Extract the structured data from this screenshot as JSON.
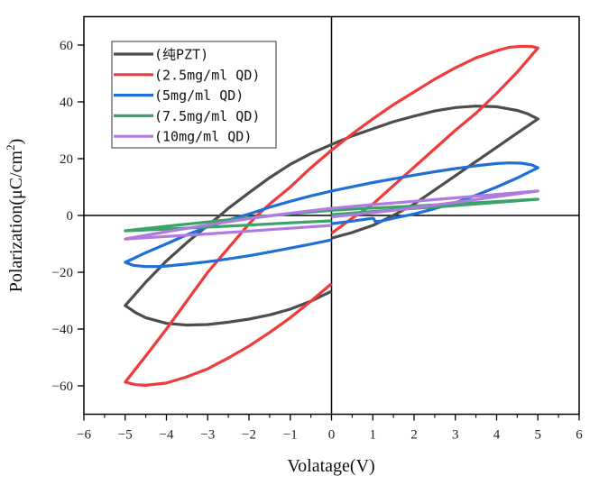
{
  "chart_data": {
    "type": "line",
    "title": "",
    "xlabel": "Volatage(V)",
    "ylabel": "Polarization(μC/cm²)",
    "ylabel_base": "Polarization(μC/cm",
    "ylabel_sup": "2",
    "ylabel_end": ")",
    "xlim": [
      -6,
      6
    ],
    "ylim": [
      -70,
      70
    ],
    "x_ticks": [
      -6,
      -5,
      -4,
      -3,
      -2,
      -1,
      0,
      1,
      2,
      3,
      4,
      5,
      6
    ],
    "x_tick_labels": [
      "−6",
      "−5",
      "−4",
      "−3",
      "−2",
      "−1",
      "0",
      "1",
      "2",
      "3",
      "4",
      "5",
      "6"
    ],
    "y_ticks": [
      -60,
      -40,
      -20,
      0,
      20,
      40,
      60
    ],
    "y_tick_labels": [
      "−60",
      "−40",
      "−20",
      "0",
      "20",
      "40",
      "60"
    ],
    "grid": false,
    "zero_lines": true,
    "legend_position": "top-left",
    "series": [
      {
        "name": "(纯PZT)",
        "color": "#4d4d4d",
        "points": [
          [
            0,
            -8
          ],
          [
            0.5,
            -6
          ],
          [
            1,
            -3.5
          ],
          [
            1.5,
            0
          ],
          [
            2,
            4
          ],
          [
            2.5,
            9
          ],
          [
            3,
            14
          ],
          [
            3.5,
            19
          ],
          [
            4,
            24
          ],
          [
            4.5,
            29
          ],
          [
            5,
            34
          ],
          [
            4.75,
            35.8
          ],
          [
            4.5,
            37
          ],
          [
            4,
            38.3
          ],
          [
            3.5,
            38.5
          ],
          [
            3,
            38
          ],
          [
            2.5,
            36.8
          ],
          [
            2,
            35
          ],
          [
            1.5,
            33
          ],
          [
            1,
            30.5
          ],
          [
            0.5,
            28
          ],
          [
            0,
            25
          ],
          [
            -0.5,
            21.8
          ],
          [
            -1,
            18
          ],
          [
            -1.5,
            13.3
          ],
          [
            -2,
            8
          ],
          [
            -2.5,
            2.5
          ],
          [
            -2.7,
            0
          ],
          [
            -3,
            -3.5
          ],
          [
            -3.5,
            -9.5
          ],
          [
            -4,
            -16
          ],
          [
            -4.5,
            -23.5
          ],
          [
            -5,
            -31.7
          ],
          [
            -4.75,
            -34.2
          ],
          [
            -4.5,
            -36
          ],
          [
            -4,
            -38
          ],
          [
            -3.5,
            -38.6
          ],
          [
            -3,
            -38.4
          ],
          [
            -2.5,
            -37.6
          ],
          [
            -2,
            -36.5
          ],
          [
            -1.5,
            -35
          ],
          [
            -1,
            -33
          ],
          [
            -0.5,
            -30.2
          ],
          [
            0,
            -26.7
          ]
        ]
      },
      {
        "name": "(2.5mg/ml QD)",
        "color": "#ee3b3b",
        "points": [
          [
            0,
            -6.3
          ],
          [
            0.5,
            -1
          ],
          [
            1,
            4
          ],
          [
            1.5,
            10.5
          ],
          [
            2,
            17
          ],
          [
            2.5,
            23.5
          ],
          [
            3,
            30
          ],
          [
            3.5,
            36
          ],
          [
            4,
            43
          ],
          [
            4.5,
            50.5
          ],
          [
            5,
            59
          ],
          [
            4.85,
            59.5
          ],
          [
            4.6,
            59.6
          ],
          [
            4.3,
            59.2
          ],
          [
            4,
            58
          ],
          [
            3.5,
            55.5
          ],
          [
            3,
            52
          ],
          [
            2.5,
            48
          ],
          [
            2,
            43.5
          ],
          [
            1.5,
            39
          ],
          [
            1,
            34
          ],
          [
            0.5,
            28.7
          ],
          [
            0,
            23
          ],
          [
            -0.5,
            16.8
          ],
          [
            -1,
            10
          ],
          [
            -1.5,
            4
          ],
          [
            -1.8,
            0
          ],
          [
            -2,
            -3
          ],
          [
            -2.5,
            -11.5
          ],
          [
            -3,
            -20
          ],
          [
            -3.5,
            -30
          ],
          [
            -4,
            -40
          ],
          [
            -4.5,
            -49.5
          ],
          [
            -5,
            -58.7
          ],
          [
            -4.75,
            -59.6
          ],
          [
            -4.5,
            -59.8
          ],
          [
            -4,
            -59
          ],
          [
            -3.5,
            -56.8
          ],
          [
            -3,
            -54
          ],
          [
            -2.5,
            -50.2
          ],
          [
            -2,
            -46
          ],
          [
            -1.5,
            -41.2
          ],
          [
            -1,
            -36
          ],
          [
            -0.5,
            -30.2
          ],
          [
            0,
            -24
          ]
        ]
      },
      {
        "name": "(5mg/ml QD)",
        "color": "#1f6fd6",
        "points": [
          [
            0,
            -2.9
          ],
          [
            0.5,
            -2
          ],
          [
            1,
            -1
          ],
          [
            1.02,
            -1.2
          ],
          [
            1.06,
            -2.1
          ],
          [
            1.2,
            -2
          ],
          [
            1.5,
            -1
          ],
          [
            2,
            0.5
          ],
          [
            2.5,
            2.4
          ],
          [
            3,
            4.5
          ],
          [
            3.5,
            7.1
          ],
          [
            4,
            10
          ],
          [
            4.5,
            13.2
          ],
          [
            5,
            16.8
          ],
          [
            4.85,
            17.8
          ],
          [
            4.6,
            18.4
          ],
          [
            4.3,
            18.5
          ],
          [
            4,
            18.3
          ],
          [
            3.5,
            17.5
          ],
          [
            3,
            16.5
          ],
          [
            2.5,
            15.4
          ],
          [
            2,
            14.2
          ],
          [
            1.5,
            12.9
          ],
          [
            1,
            11.6
          ],
          [
            0.5,
            10.1
          ],
          [
            0,
            8.6
          ],
          [
            -0.5,
            6.9
          ],
          [
            -1,
            5
          ],
          [
            -1.5,
            2.9
          ],
          [
            -2,
            0.5
          ],
          [
            -2.5,
            -1.6
          ],
          [
            -3,
            -4
          ],
          [
            -3.5,
            -6.8
          ],
          [
            -4,
            -10
          ],
          [
            -4.5,
            -13.1
          ],
          [
            -5,
            -16.5
          ],
          [
            -4.8,
            -17.6
          ],
          [
            -4.5,
            -18
          ],
          [
            -4.2,
            -18
          ],
          [
            -4,
            -17.8
          ],
          [
            -3.5,
            -17.1
          ],
          [
            -3,
            -16.3
          ],
          [
            -2.5,
            -15.3
          ],
          [
            -2,
            -14.2
          ],
          [
            -1.5,
            -12.9
          ],
          [
            -1,
            -11.5
          ],
          [
            -0.5,
            -10.1
          ],
          [
            0,
            -8.6
          ]
        ]
      },
      {
        "name": "(7.5mg/ml QD)",
        "color": "#3aa36a",
        "points": [
          [
            0,
            0.3
          ],
          [
            1,
            1.4
          ],
          [
            2,
            2.5
          ],
          [
            3,
            3.5
          ],
          [
            4,
            4.6
          ],
          [
            5,
            5.7
          ],
          [
            4,
            4.9
          ],
          [
            3,
            4.1
          ],
          [
            2,
            3.3
          ],
          [
            1,
            2.6
          ],
          [
            0,
            1.8
          ],
          [
            -1,
            0.6
          ],
          [
            -2,
            -0.8
          ],
          [
            -3,
            -2.3
          ],
          [
            -4,
            -3.8
          ],
          [
            -5,
            -5.4
          ],
          [
            -4,
            -4.8
          ],
          [
            -3,
            -4.1
          ],
          [
            -2,
            -3.4
          ],
          [
            -1,
            -2.6
          ],
          [
            0,
            -1.9
          ]
        ]
      },
      {
        "name": "(10mg/ml QD)",
        "color": "#b07be0",
        "points": [
          [
            0,
            -0.5
          ],
          [
            1,
            1
          ],
          [
            2,
            2.7
          ],
          [
            3,
            4.6
          ],
          [
            4,
            6.6
          ],
          [
            5,
            8.6
          ],
          [
            4,
            7.4
          ],
          [
            3,
            6.2
          ],
          [
            2,
            5
          ],
          [
            1,
            3.8
          ],
          [
            0,
            2.5
          ],
          [
            -1,
            0.8
          ],
          [
            -2,
            -1.1
          ],
          [
            -3,
            -3.3
          ],
          [
            -4,
            -5.7
          ],
          [
            -5,
            -8.3
          ],
          [
            -4,
            -7.4
          ],
          [
            -3,
            -6.5
          ],
          [
            -2,
            -5.5
          ],
          [
            -1,
            -4.5
          ],
          [
            0,
            -3.5
          ]
        ]
      }
    ]
  }
}
